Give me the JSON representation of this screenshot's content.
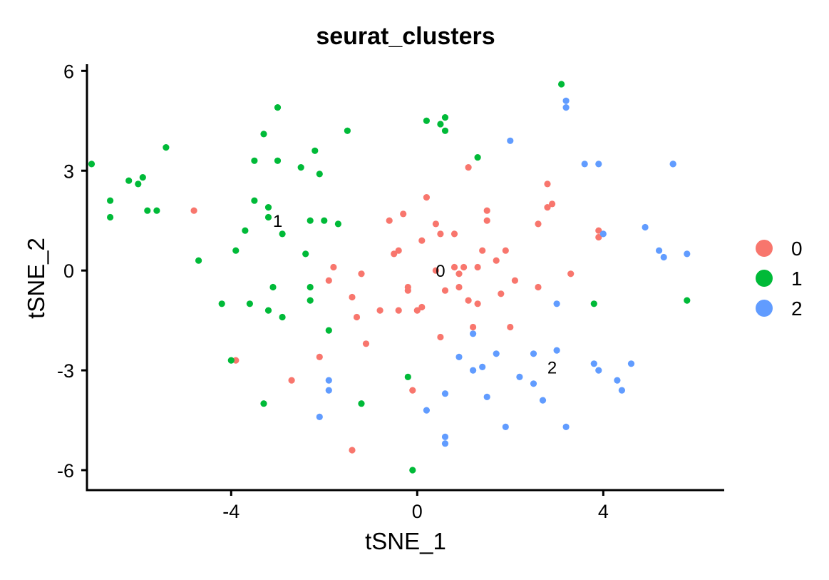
{
  "chart_data": {
    "type": "scatter",
    "title": "seurat_clusters",
    "xlabel": "tSNE_1",
    "ylabel": "tSNE_2",
    "xlim": [
      -7.1,
      6.6
    ],
    "ylim": [
      -6.6,
      6.2
    ],
    "xticks": [
      -4,
      0,
      4
    ],
    "yticks": [
      -6,
      -3,
      0,
      3,
      6
    ],
    "legend_position": "right",
    "grid": false,
    "series": [
      {
        "name": "0",
        "color": "#F8766D",
        "points": [
          [
            -4.8,
            1.8
          ],
          [
            -3.9,
            -2.7
          ],
          [
            -2.7,
            -3.3
          ],
          [
            -2.1,
            -2.6
          ],
          [
            -1.9,
            -0.3
          ],
          [
            -1.8,
            0.1
          ],
          [
            -1.4,
            -0.8
          ],
          [
            -1.3,
            -1.4
          ],
          [
            -1.2,
            -0.1
          ],
          [
            -1.1,
            -2.2
          ],
          [
            -0.8,
            -1.2
          ],
          [
            -0.6,
            1.5
          ],
          [
            -0.5,
            0.5
          ],
          [
            -0.4,
            -1.2
          ],
          [
            -0.4,
            0.6
          ],
          [
            -0.3,
            1.7
          ],
          [
            -0.2,
            -0.6
          ],
          [
            -0.2,
            -0.5
          ],
          [
            -0.1,
            -3.6
          ],
          [
            0.0,
            -1.2
          ],
          [
            0.1,
            0.9
          ],
          [
            0.1,
            -1.1
          ],
          [
            0.2,
            2.2
          ],
          [
            0.4,
            1.4
          ],
          [
            0.4,
            0.0
          ],
          [
            0.5,
            -2.0
          ],
          [
            0.5,
            1.1
          ],
          [
            0.6,
            -0.6
          ],
          [
            0.8,
            1.1
          ],
          [
            0.8,
            0.1
          ],
          [
            0.9,
            -0.5
          ],
          [
            0.9,
            -0.1
          ],
          [
            1.0,
            0.1
          ],
          [
            1.1,
            -0.9
          ],
          [
            1.1,
            3.1
          ],
          [
            1.2,
            -1.7
          ],
          [
            1.3,
            -1.0
          ],
          [
            1.3,
            0.1
          ],
          [
            1.4,
            0.6
          ],
          [
            1.5,
            1.8
          ],
          [
            1.5,
            1.5
          ],
          [
            1.7,
            0.3
          ],
          [
            1.8,
            -0.7
          ],
          [
            1.9,
            0.6
          ],
          [
            2.0,
            -1.7
          ],
          [
            2.1,
            -0.3
          ],
          [
            2.6,
            -0.5
          ],
          [
            2.6,
            1.4
          ],
          [
            2.8,
            1.9
          ],
          [
            2.8,
            2.6
          ],
          [
            2.9,
            2.0
          ],
          [
            3.3,
            -0.1
          ],
          [
            3.9,
            1.2
          ],
          [
            3.9,
            1.0
          ],
          [
            -1.4,
            -5.4
          ]
        ]
      },
      {
        "name": "1",
        "color": "#00BA38",
        "points": [
          [
            -7.0,
            3.2
          ],
          [
            -6.6,
            2.1
          ],
          [
            -6.6,
            1.6
          ],
          [
            -6.2,
            2.7
          ],
          [
            -6.0,
            2.6
          ],
          [
            -5.9,
            2.8
          ],
          [
            -5.8,
            1.8
          ],
          [
            -5.6,
            1.8
          ],
          [
            -5.4,
            3.7
          ],
          [
            -4.7,
            0.3
          ],
          [
            -4.2,
            -1.0
          ],
          [
            -4.0,
            -2.7
          ],
          [
            -3.9,
            0.6
          ],
          [
            -3.7,
            1.2
          ],
          [
            -3.6,
            -1.0
          ],
          [
            -3.5,
            2.1
          ],
          [
            -3.5,
            3.3
          ],
          [
            -3.3,
            4.1
          ],
          [
            -3.3,
            -4.0
          ],
          [
            -3.2,
            1.6
          ],
          [
            -3.2,
            -1.2
          ],
          [
            -3.2,
            1.9
          ],
          [
            -3.1,
            -0.5
          ],
          [
            -3.0,
            3.3
          ],
          [
            -3.0,
            4.9
          ],
          [
            -2.9,
            1.1
          ],
          [
            -2.9,
            -1.4
          ],
          [
            -2.5,
            3.1
          ],
          [
            -2.4,
            0.5
          ],
          [
            -2.3,
            -0.5
          ],
          [
            -2.3,
            -0.9
          ],
          [
            -2.3,
            1.5
          ],
          [
            -2.2,
            3.6
          ],
          [
            -2.1,
            2.9
          ],
          [
            -2.0,
            1.5
          ],
          [
            -1.9,
            -1.8
          ],
          [
            -1.7,
            1.4
          ],
          [
            -1.5,
            4.2
          ],
          [
            -1.2,
            -4.0
          ],
          [
            -0.2,
            -3.2
          ],
          [
            -0.1,
            -6.0
          ],
          [
            0.2,
            4.5
          ],
          [
            0.5,
            4.4
          ],
          [
            0.6,
            4.2
          ],
          [
            0.6,
            4.6
          ],
          [
            1.3,
            3.4
          ],
          [
            3.1,
            5.6
          ],
          [
            3.8,
            -1.0
          ],
          [
            5.8,
            -0.9
          ]
        ]
      },
      {
        "name": "2",
        "color": "#619CFF",
        "points": [
          [
            -2.1,
            -4.4
          ],
          [
            -1.9,
            -3.3
          ],
          [
            -1.9,
            -3.6
          ],
          [
            0.2,
            -4.2
          ],
          [
            0.6,
            -5.0
          ],
          [
            0.6,
            -5.2
          ],
          [
            0.6,
            -3.7
          ],
          [
            0.9,
            -2.6
          ],
          [
            1.2,
            -3.0
          ],
          [
            1.2,
            -1.9
          ],
          [
            1.4,
            -2.9
          ],
          [
            1.5,
            -3.8
          ],
          [
            1.7,
            -2.5
          ],
          [
            1.9,
            -4.7
          ],
          [
            2.0,
            3.9
          ],
          [
            2.2,
            -3.2
          ],
          [
            2.5,
            -2.5
          ],
          [
            2.5,
            -3.4
          ],
          [
            2.7,
            -3.9
          ],
          [
            3.0,
            -1.0
          ],
          [
            3.0,
            -2.4
          ],
          [
            3.2,
            -4.7
          ],
          [
            3.2,
            5.1
          ],
          [
            3.2,
            4.9
          ],
          [
            3.6,
            3.2
          ],
          [
            3.8,
            -2.8
          ],
          [
            3.9,
            -3.0
          ],
          [
            3.9,
            3.2
          ],
          [
            4.0,
            1.1
          ],
          [
            4.3,
            -3.3
          ],
          [
            4.4,
            -3.6
          ],
          [
            4.6,
            -2.8
          ],
          [
            4.9,
            1.3
          ],
          [
            5.2,
            0.6
          ],
          [
            5.3,
            0.4
          ],
          [
            5.5,
            3.2
          ],
          [
            5.5,
            3.2
          ],
          [
            5.8,
            0.5
          ]
        ]
      }
    ],
    "cluster_labels": [
      {
        "text": "1",
        "x": -3.0,
        "y": 1.5
      },
      {
        "text": "0",
        "x": 0.5,
        "y": 0.0
      },
      {
        "text": "2",
        "x": 2.9,
        "y": -2.9
      }
    ],
    "legend_entries": [
      "0",
      "1",
      "2"
    ]
  }
}
